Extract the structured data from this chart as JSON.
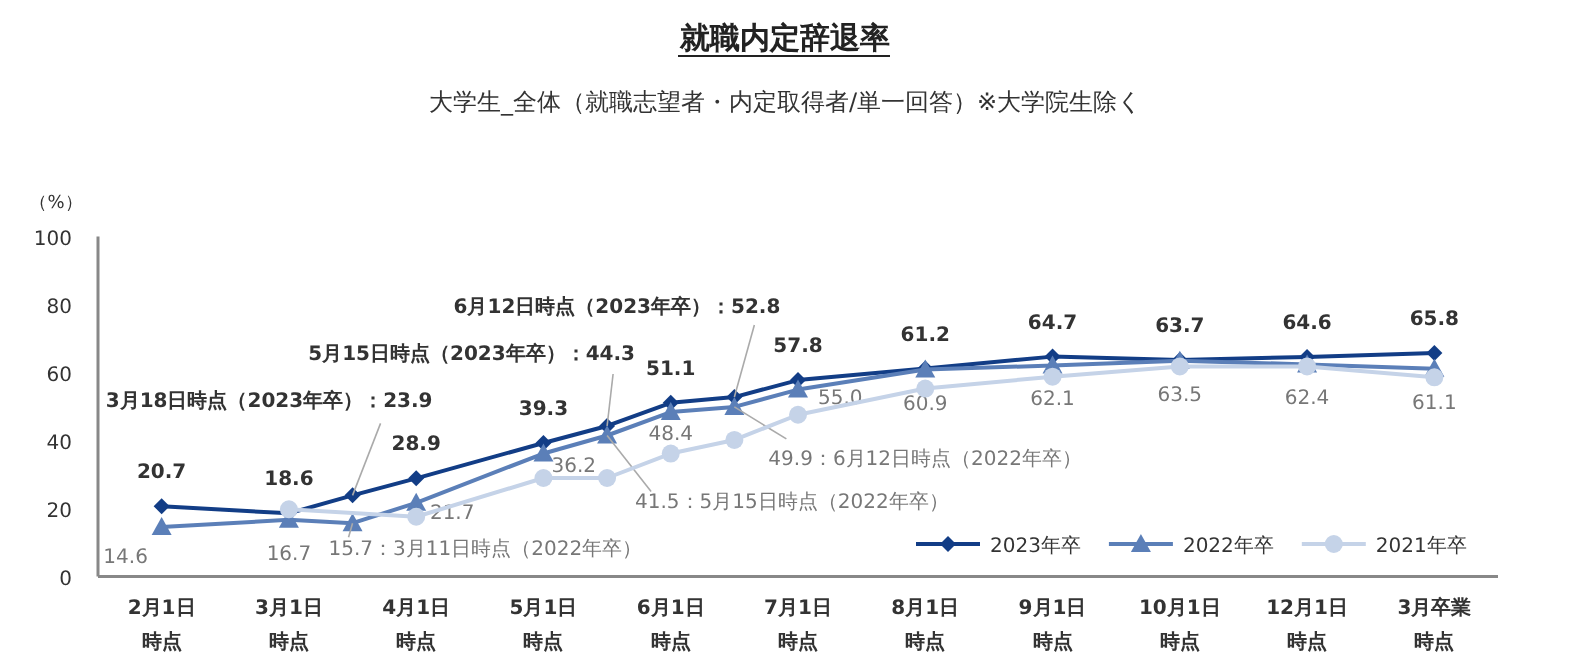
{
  "chart_data": {
    "type": "line",
    "title": "就職内定辞退率",
    "subtitle": "大学生_全体（就職志望者・内定取得者/単一回答）※大学院生除く",
    "ylabel": "（%）",
    "categories": [
      "2月1日時点",
      "3月1日時点",
      null,
      "4月1日時点",
      "5月1日時点",
      null,
      "6月1日時点",
      null,
      "7月1日時点",
      "8月1日時点",
      "9月1日時点",
      "10月1日時点",
      "12月1日時点",
      "3月卒業時点"
    ],
    "ylim": [
      0,
      100
    ],
    "yticks": [
      0,
      20,
      40,
      60,
      80,
      100
    ],
    "legend": "bottom right",
    "series": [
      {
        "name": "2023年卒",
        "color": "#123d86",
        "marker": "diamond",
        "values": [
          20.7,
          18.6,
          23.9,
          28.9,
          39.3,
          44.3,
          51.1,
          52.8,
          57.8,
          61.2,
          64.7,
          63.7,
          64.6,
          65.8
        ],
        "value_labels": [
          "20.7",
          "18.6",
          "3月18日時点（2023年卒）：23.9",
          "28.9",
          "39.3",
          "5月15日時点（2023年卒）：44.3",
          "51.1",
          "6月12日時点（2023年卒）：52.8",
          "57.8",
          "61.2",
          "64.7",
          "63.7",
          "64.6",
          "65.8"
        ]
      },
      {
        "name": "2022年卒",
        "color": "#5b7fb8",
        "marker": "triangle",
        "values": [
          14.6,
          16.7,
          15.7,
          21.7,
          36.2,
          41.5,
          48.4,
          49.9,
          55.0,
          60.9,
          62.1,
          63.5,
          62.4,
          61.1
        ],
        "value_labels": [
          "14.6",
          "16.7",
          "15.7：3月11日時点（2022年卒）",
          "21.7",
          "36.2",
          "41.5：5月15日時点（2022年卒）",
          "48.4",
          "49.9：6月12日時点（2022年卒）",
          "55.0",
          "60.9",
          "62.1",
          "63.5",
          "62.4",
          "61.1"
        ]
      },
      {
        "name": "2021年卒",
        "color": "#c5d3e8",
        "marker": "circle",
        "values": [
          null,
          19.8,
          null,
          17.6,
          29.0,
          29.0,
          36.2,
          40.2,
          47.6,
          55.3,
          58.8,
          61.8,
          61.8,
          58.6
        ]
      }
    ]
  }
}
